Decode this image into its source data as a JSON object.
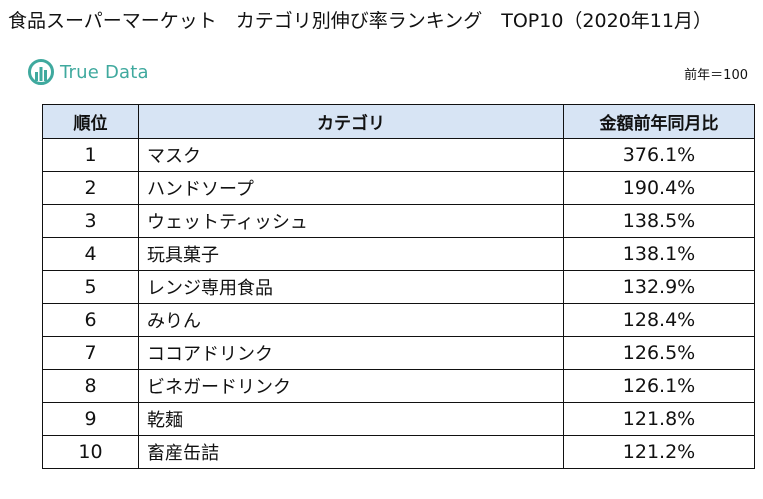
{
  "title": "食品スーパーマーケット　カテゴリ別伸び率ランキング　TOP10（2020年11月）",
  "logo": {
    "icon": "true-data-logo-icon",
    "text": "True Data",
    "color": "#3fa99e"
  },
  "base_note": "前年＝100",
  "table": {
    "header_color": "#d7e4f4",
    "headers": {
      "rank": "順位",
      "category": "カテゴリ",
      "ratio": "金額前年同月比"
    },
    "rows": [
      {
        "rank": "1",
        "category": "マスク",
        "ratio": "376.1%"
      },
      {
        "rank": "2",
        "category": "ハンドソープ",
        "ratio": "190.4%"
      },
      {
        "rank": "3",
        "category": "ウェットティッシュ",
        "ratio": "138.5%"
      },
      {
        "rank": "4",
        "category": "玩具菓子",
        "ratio": "138.1%"
      },
      {
        "rank": "5",
        "category": "レンジ専用食品",
        "ratio": "132.9%"
      },
      {
        "rank": "6",
        "category": "みりん",
        "ratio": "128.4%"
      },
      {
        "rank": "7",
        "category": "ココアドリンク",
        "ratio": "126.5%"
      },
      {
        "rank": "8",
        "category": "ビネガードリンク",
        "ratio": "126.1%"
      },
      {
        "rank": "9",
        "category": "乾麺",
        "ratio": "121.8%"
      },
      {
        "rank": "10",
        "category": "畜産缶詰",
        "ratio": "121.2%"
      }
    ]
  }
}
